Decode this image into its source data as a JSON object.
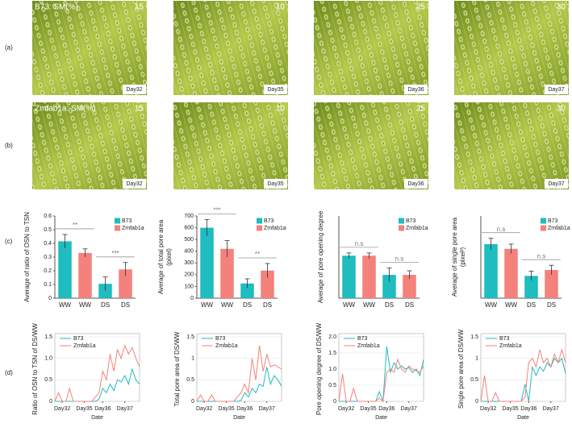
{
  "images": [
    {
      "row": "(a)",
      "title": "B73: SM(%)",
      "panels": [
        {
          "sm": 15,
          "day": "Day32"
        },
        {
          "sm": 10,
          "day": "Day35"
        },
        {
          "sm": 25,
          "day": "Day36"
        },
        {
          "sm": 30,
          "day": "Day37"
        }
      ]
    },
    {
      "row": "(b)",
      "title": "Zmfab1a: SM(%)",
      "panels": [
        {
          "sm": 15,
          "day": "Day32"
        },
        {
          "sm": 10,
          "day": "Day35"
        },
        {
          "sm": 25,
          "day": "Day36"
        },
        {
          "sm": 30,
          "day": "Day37"
        }
      ]
    }
  ],
  "row_labels": [
    "(c)",
    "(d)"
  ],
  "chart_data": [
    {
      "type": "bar",
      "ylabel": [
        "Average of ratio of OSN to TSN"
      ],
      "categories": [
        "WW",
        "WW",
        "DS",
        "DS"
      ],
      "series": [
        {
          "name": "B73",
          "color": "#1fbcc0",
          "values": [
            0.415,
            null,
            0.105,
            null
          ],
          "errors": [
            0.05,
            null,
            0.05,
            null
          ]
        },
        {
          "name": "Zmfab1a",
          "color": "#f4817c",
          "values": [
            null,
            0.33,
            null,
            0.21
          ],
          "errors": [
            null,
            0.03,
            null,
            0.05
          ]
        }
      ],
      "ylim": [
        0,
        0.6
      ],
      "yticks": [
        0,
        0.1,
        0.2,
        0.3,
        0.4,
        0.5,
        0.6
      ],
      "annotations": [
        "**",
        "***"
      ]
    },
    {
      "type": "bar",
      "ylabel": [
        "Average of total pore area",
        "(pixel)"
      ],
      "categories": [
        "WW",
        "WW",
        "DS",
        "DS"
      ],
      "series": [
        {
          "name": "B73",
          "color": "#1fbcc0",
          "values": [
            600,
            null,
            125,
            null
          ],
          "errors": [
            70,
            null,
            40,
            null
          ]
        },
        {
          "name": "Zmfab1a",
          "color": "#f4817c",
          "values": [
            null,
            420,
            null,
            235
          ],
          "errors": [
            null,
            70,
            null,
            60
          ]
        }
      ],
      "ylim": [
        0,
        700
      ],
      "yticks": [
        0,
        100,
        200,
        300,
        400,
        500,
        600,
        700
      ],
      "annotations": [
        "***",
        "**"
      ]
    },
    {
      "type": "bar",
      "ylabel": [
        "Average of pore opening degree"
      ],
      "categories": [
        "WW",
        "WW",
        "DS",
        "DS"
      ],
      "series": [
        {
          "name": "B73",
          "color": "#1fbcc0",
          "values": [
            0.31,
            null,
            0.17,
            null
          ],
          "errors": [
            0.02,
            null,
            0.05,
            null
          ]
        },
        {
          "name": "Zmfab1a",
          "color": "#f4817c",
          "values": [
            null,
            0.31,
            null,
            0.17
          ],
          "errors": [
            null,
            0.02,
            null,
            0.03
          ]
        }
      ],
      "ylim": [
        0,
        0.6
      ],
      "annotations": [
        "n.s",
        "n.s"
      ]
    },
    {
      "type": "bar",
      "ylabel": [
        "Average of single pore area",
        "(pixel²)"
      ],
      "categories": [
        "WW",
        "WW",
        "DS",
        "DS"
      ],
      "series": [
        {
          "name": "B73",
          "color": "#1fbcc0",
          "values": [
            46,
            null,
            19,
            null
          ],
          "errors": [
            5,
            null,
            4,
            null
          ]
        },
        {
          "name": "Zmfab1a",
          "color": "#f4817c",
          "values": [
            null,
            42,
            null,
            24
          ],
          "errors": [
            null,
            4,
            null,
            4
          ]
        }
      ],
      "ylim": [
        0,
        70
      ],
      "annotations": [
        "n.s",
        "n.s"
      ]
    },
    {
      "type": "line",
      "ylabel": "Ratio of OSN to TSN of DS/WW",
      "xlabel": "Date",
      "x": [
        0,
        1,
        2,
        3,
        4,
        5,
        6,
        7,
        8,
        9,
        10,
        11,
        12,
        13,
        14,
        15,
        16,
        17,
        18,
        19,
        20,
        21,
        22,
        23
      ],
      "xlim": [
        0,
        23
      ],
      "xticks": [
        {
          "value": 2,
          "label": "Day32"
        },
        {
          "value": 8,
          "label": "Day35"
        },
        {
          "value": 13,
          "label": "Day36"
        },
        {
          "value": 19,
          "label": "Day37"
        }
      ],
      "series": [
        {
          "name": "B73",
          "color": "#1fbcc0",
          "values": [
            0,
            0,
            0,
            0,
            0,
            0,
            0,
            0,
            0,
            0,
            0,
            0,
            0.05,
            0.3,
            0.2,
            0.4,
            0.25,
            0.5,
            0.45,
            0.6,
            0.4,
            0.75,
            0.5,
            0.4
          ]
        },
        {
          "name": "Zmfab1a",
          "color": "#f4817c",
          "values": [
            0,
            0.2,
            0,
            0,
            0.3,
            0,
            0,
            0,
            0,
            0,
            0,
            0.1,
            0.2,
            0.7,
            0.5,
            1.1,
            0.7,
            1.2,
            1.0,
            1.3,
            1.1,
            1.25,
            1.0,
            0.8
          ]
        }
      ],
      "ylim": [
        0,
        1.5
      ],
      "yticks": [
        0,
        0.5,
        {
          "value": 1,
          "label": "1.0"
        },
        1.5
      ]
    },
    {
      "type": "line",
      "ylabel": "Total pore area of DS/WW",
      "xlabel": "Date",
      "x": [
        0,
        1,
        2,
        3,
        4,
        5,
        6,
        7,
        8,
        9,
        10,
        11,
        12,
        13,
        14,
        15,
        16,
        17,
        18,
        19,
        20,
        21,
        22,
        23
      ],
      "xlim": [
        0,
        23
      ],
      "xticks": [
        {
          "value": 2,
          "label": "Day32"
        },
        {
          "value": 8,
          "label": "Day35"
        },
        {
          "value": 13,
          "label": "Day36"
        },
        {
          "value": 19,
          "label": "Day37"
        }
      ],
      "series": [
        {
          "name": "B73",
          "color": "#1fbcc0",
          "values": [
            0,
            0,
            0,
            0,
            0,
            0,
            0,
            0,
            0,
            0,
            0,
            0,
            0.02,
            0.2,
            0.1,
            0.3,
            0.2,
            0.4,
            0.35,
            0.8,
            0.4,
            0.6,
            0.5,
            0.35
          ]
        },
        {
          "name": "Zmfab1a",
          "color": "#f4817c",
          "values": [
            0,
            0.15,
            0,
            0,
            0.15,
            0,
            0,
            0,
            0,
            0,
            0,
            0.1,
            0.2,
            0.4,
            0.2,
            1.0,
            0.5,
            1.3,
            0.7,
            1.1,
            0.8,
            0.85,
            0.8,
            0.75
          ]
        }
      ],
      "ylim": [
        0,
        1.5
      ],
      "yticks": [
        0,
        0.5,
        1,
        1.5
      ]
    },
    {
      "type": "line",
      "ylabel": "Pore opening degree of DS/WW",
      "xlabel": "Date",
      "x": [
        0,
        1,
        2,
        3,
        4,
        5,
        6,
        7,
        8,
        9,
        10,
        11,
        12,
        13,
        14,
        15,
        16,
        17,
        18,
        19,
        20,
        21,
        22,
        23
      ],
      "xlim": [
        0,
        23
      ],
      "xticks": [
        {
          "value": 2,
          "label": "Day32"
        },
        {
          "value": 8,
          "label": "Day35"
        },
        {
          "value": 13,
          "label": "Day36"
        },
        {
          "value": 19,
          "label": "Day37"
        }
      ],
      "series": [
        {
          "name": "B73",
          "color": "#1fbcc0",
          "values": [
            0,
            0,
            0,
            0,
            0,
            0,
            0,
            0,
            0,
            0,
            0,
            0.3,
            0,
            1.7,
            0.9,
            1.2,
            1.0,
            1.1,
            1.0,
            1.05,
            0.9,
            1.0,
            0.8,
            1.3
          ]
        },
        {
          "name": "Zmfab1a",
          "color": "#f4817c",
          "values": [
            0,
            0.85,
            0,
            0,
            0.4,
            0,
            0,
            0,
            0,
            0,
            0,
            0.1,
            0,
            0.9,
            1.0,
            0.9,
            1.3,
            1.0,
            0.9,
            1.1,
            1.0,
            0.95,
            0.9,
            1.1
          ]
        }
      ],
      "ylim": [
        0,
        2
      ],
      "yticks": [
        0,
        0.5,
        {
          "value": 1,
          "label": "1.0"
        },
        1.5,
        {
          "value": 2,
          "label": "2.0"
        }
      ]
    },
    {
      "type": "line",
      "ylabel": "Single pore area of DS/WW",
      "xlabel": "Date",
      "x": [
        0,
        1,
        2,
        3,
        4,
        5,
        6,
        7,
        8,
        9,
        10,
        11,
        12,
        13,
        14,
        15,
        16,
        17,
        18,
        19,
        20,
        21,
        22,
        23
      ],
      "xlim": [
        0,
        23
      ],
      "xticks": [
        {
          "value": 2,
          "label": "Day32"
        },
        {
          "value": 8,
          "label": "Day35"
        },
        {
          "value": 13,
          "label": "Day36"
        },
        {
          "value": 19,
          "label": "Day37"
        }
      ],
      "series": [
        {
          "name": "B73",
          "color": "#1fbcc0",
          "values": [
            0,
            0,
            0,
            0,
            0,
            0,
            0,
            0,
            0,
            0,
            0,
            0,
            0.4,
            0,
            0.8,
            0.6,
            0.8,
            0.7,
            0.9,
            0.8,
            1.0,
            0.9,
            1.0,
            0.65
          ]
        },
        {
          "name": "Zmfab1a",
          "color": "#f4817c",
          "values": [
            0,
            0.6,
            0,
            0,
            0.2,
            0,
            0,
            0,
            0,
            0,
            0,
            0,
            0.1,
            0.9,
            1.0,
            0.8,
            1.2,
            0.9,
            1.0,
            0.8,
            1.1,
            0.9,
            1.2,
            0.9
          ]
        }
      ],
      "ylim": [
        0,
        1.5
      ],
      "yticks": [
        0,
        0.5,
        1,
        1.5
      ]
    }
  ]
}
